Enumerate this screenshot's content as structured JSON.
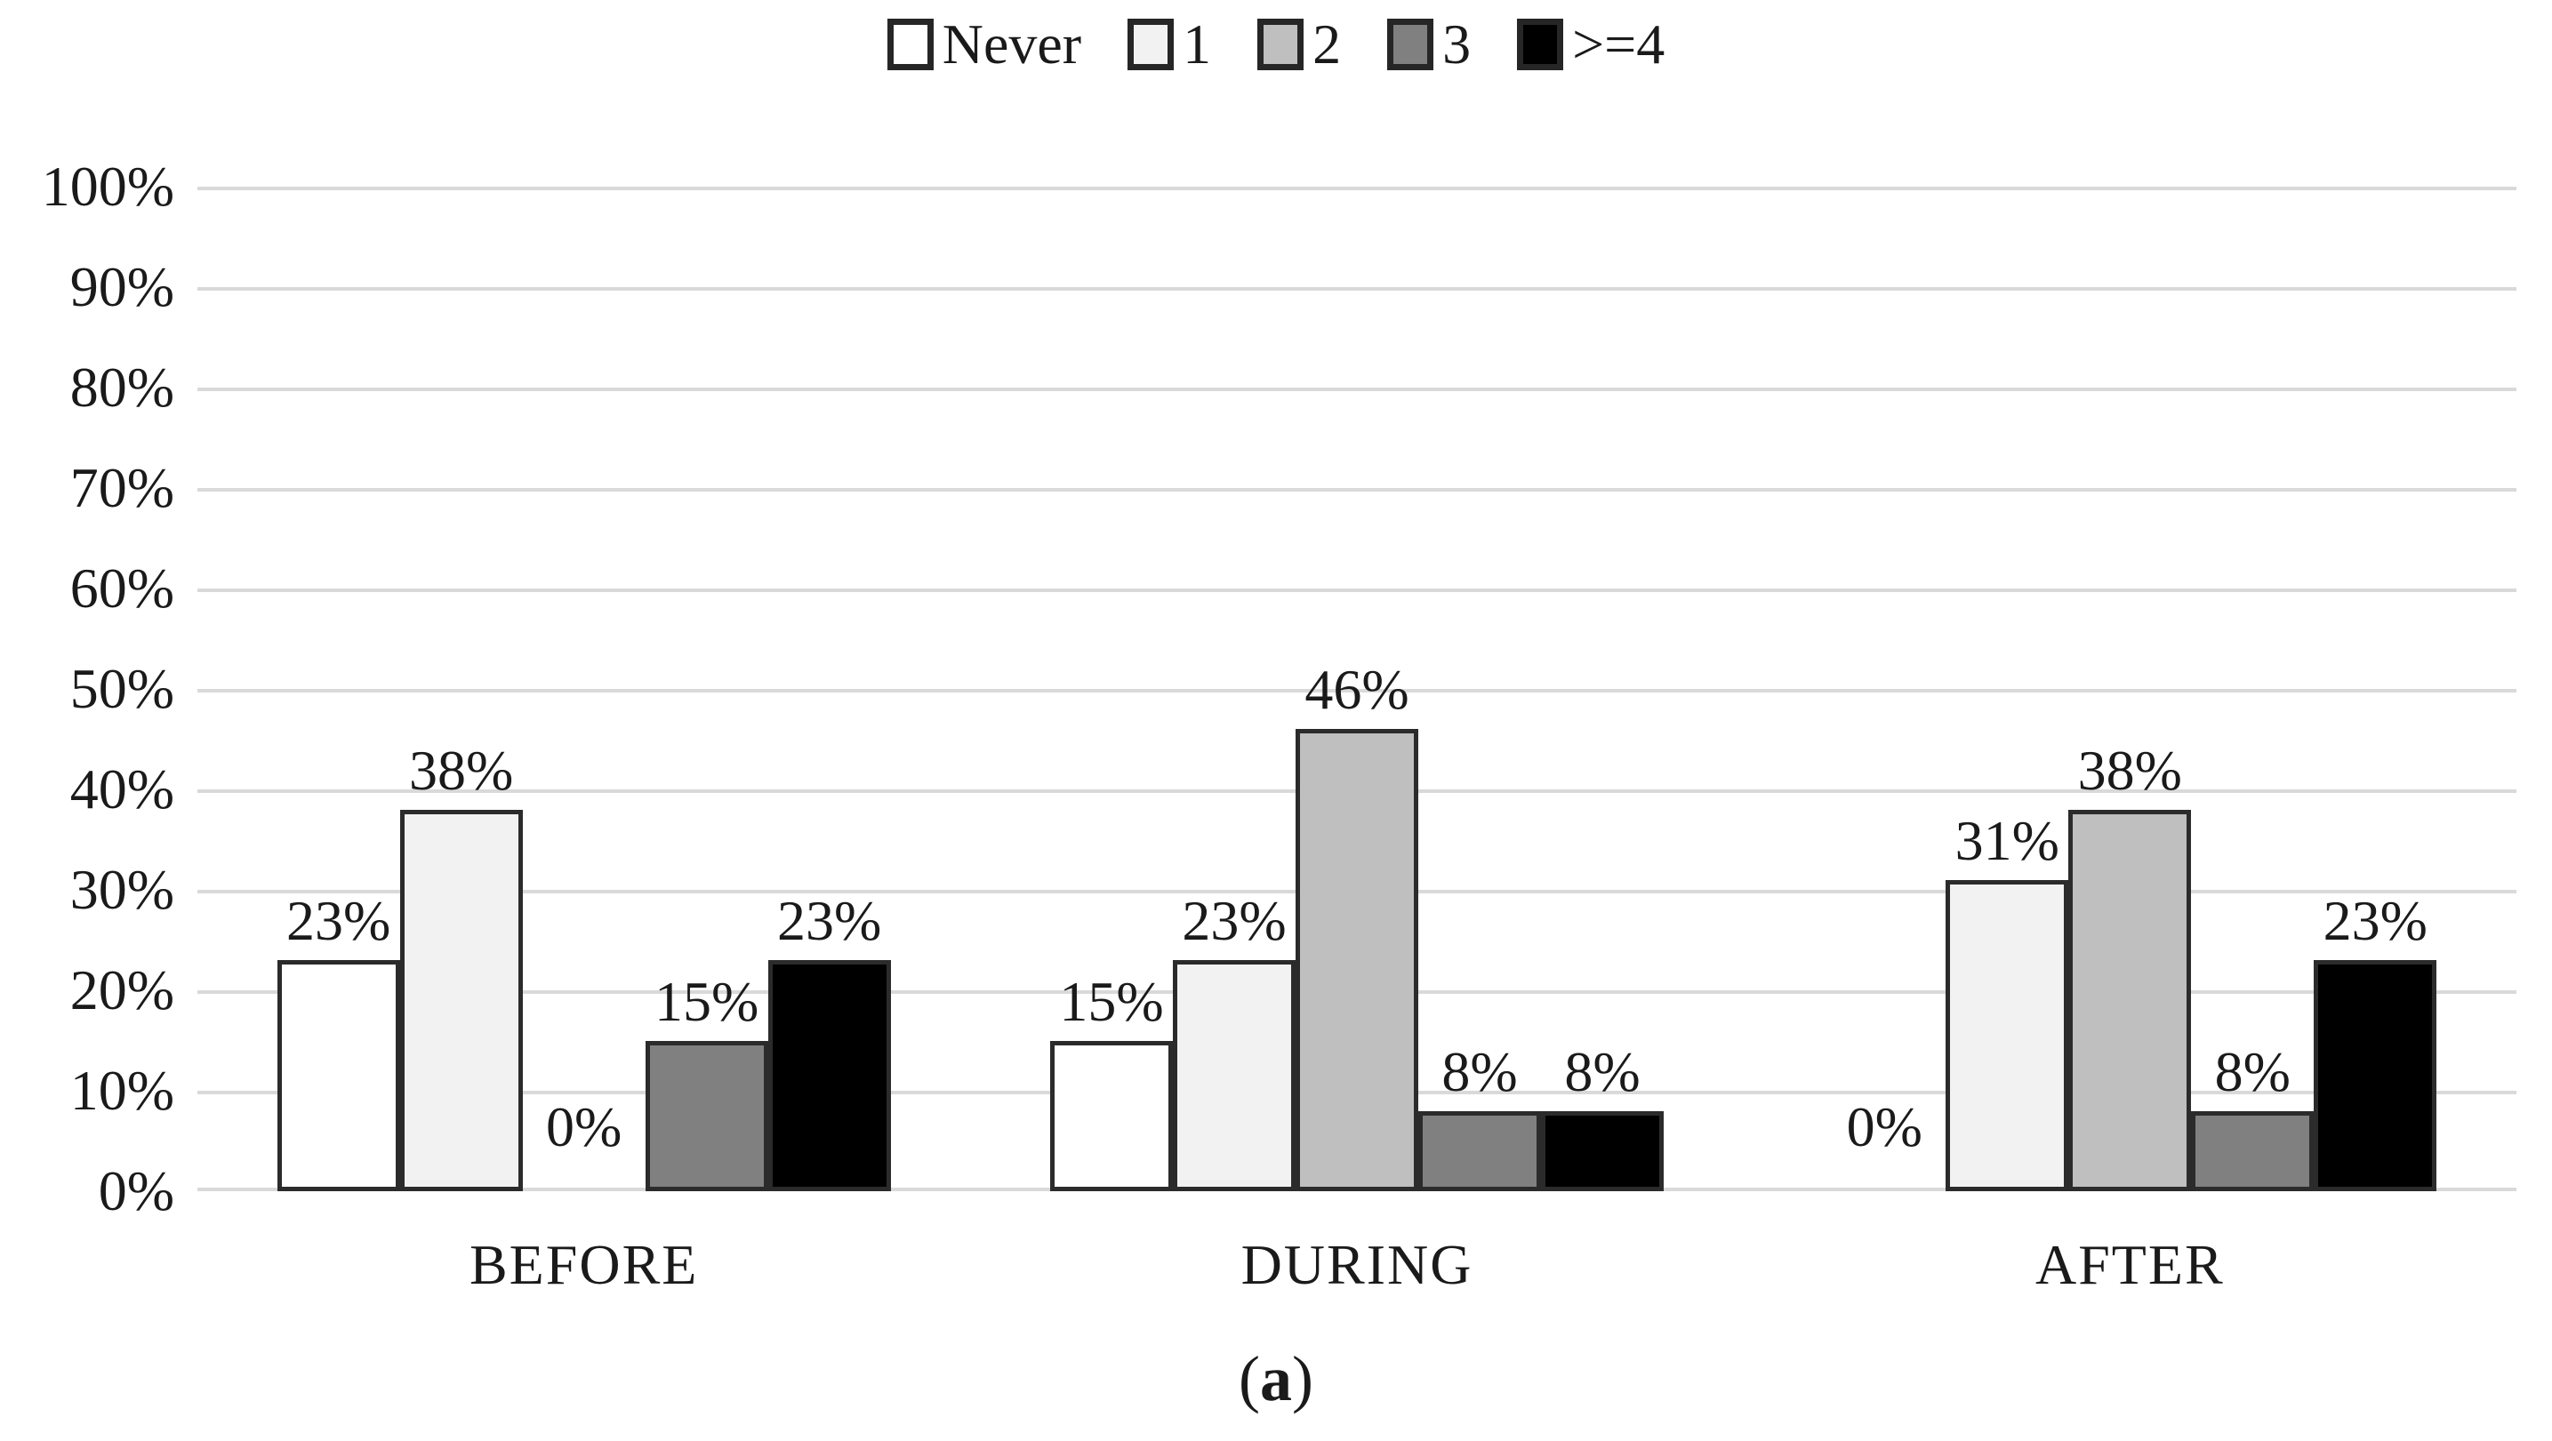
{
  "figure": {
    "caption": {
      "open": "(",
      "letter": "a",
      "close": ")"
    }
  },
  "chart_data": {
    "type": "bar",
    "title": "",
    "categories": [
      "BEFORE",
      "DURING",
      "AFTER"
    ],
    "series": [
      {
        "name": "Never",
        "color": "#ffffff",
        "values": [
          23,
          15,
          0
        ]
      },
      {
        "name": "1",
        "color": "#f2f2f2",
        "values": [
          38,
          23,
          31
        ]
      },
      {
        "name": "2",
        "color": "#bfbfbf",
        "values": [
          0,
          46,
          38
        ]
      },
      {
        "name": "3",
        "color": "#808080",
        "values": [
          15,
          8,
          8
        ]
      },
      {
        "name": ">=4",
        "color": "#000000",
        "values": [
          23,
          8,
          23
        ]
      }
    ],
    "value_labels": [
      [
        "23%",
        "38%",
        "0%",
        "15%",
        "23%"
      ],
      [
        "15%",
        "23%",
        "46%",
        "8%",
        "8%"
      ],
      [
        "0%",
        "31%",
        "38%",
        "8%",
        "23%"
      ]
    ],
    "y_ticks": [
      "100%",
      "90%",
      "80%",
      "70%",
      "60%",
      "50%",
      "40%",
      "30%",
      "20%",
      "10%",
      "0%"
    ],
    "ylim": [
      0,
      100
    ],
    "grid": true,
    "legend_position": "top",
    "gridline_color": "#d9d9d9",
    "bar_border_color": "#2b2b2b"
  }
}
